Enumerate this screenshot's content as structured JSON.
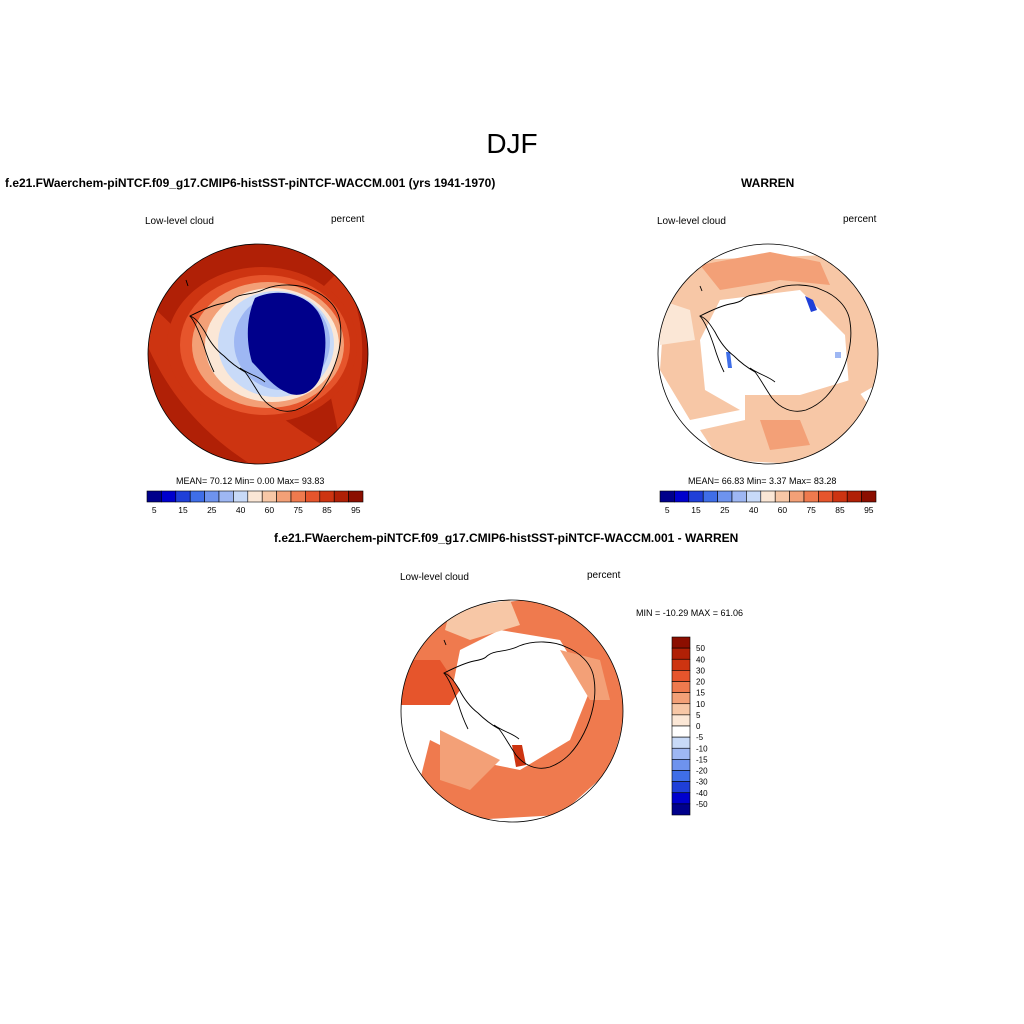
{
  "figure": {
    "title": "DJF",
    "colors": {
      "field_scale": [
        "#00008b",
        "#0000cd",
        "#1f3fd8",
        "#3f6ee8",
        "#6e93ee",
        "#9eb7f3",
        "#c8daf8",
        "#fbe7d6",
        "#f7c7a6",
        "#f3a077",
        "#ef7a4e",
        "#e6552c",
        "#cd3411",
        "#b02006",
        "#8b0e00"
      ],
      "diff_scale": [
        "#00008b",
        "#0000cd",
        "#1f3fd8",
        "#3f6ee8",
        "#6e93ee",
        "#9eb7f3",
        "#c8daf8",
        "#ffffff",
        "#fbe7d6",
        "#f7c7a6",
        "#f3a077",
        "#ef7a4e",
        "#e6552c",
        "#cd3411",
        "#b02006",
        "#8b0e00"
      ]
    },
    "panels": [
      {
        "title": "f.e21.FWaerchem-piNTCF.f09_g17.CMIP6-histSST-piNTCF-WACCM.001 (yrs 1941-1970)",
        "variable": "Low-level cloud",
        "units": "percent",
        "stats": "MEAN=  70.12  Min=   0.00  Max=  93.83",
        "colorbar_ticks": [
          "5",
          "15",
          "25",
          "40",
          "60",
          "75",
          "85",
          "95"
        ]
      },
      {
        "title": "WARREN",
        "variable": "Low-level cloud",
        "units": "percent",
        "stats": "MEAN=  66.83  Min=   3.37  Max=  83.28",
        "colorbar_ticks": [
          "5",
          "15",
          "25",
          "40",
          "60",
          "75",
          "85",
          "95"
        ]
      },
      {
        "title": "f.e21.FWaerchem-piNTCF.f09_g17.CMIP6-histSST-piNTCF-WACCM.001 - WARREN",
        "variable": "Low-level cloud",
        "units": "percent",
        "stats": "MIN = -10.29 MAX =  61.06",
        "colorbar_ticks": [
          "50",
          "40",
          "30",
          "20",
          "15",
          "10",
          "5",
          "0",
          "-5",
          "-10",
          "-15",
          "-20",
          "-30",
          "-40",
          "-50"
        ]
      }
    ]
  }
}
